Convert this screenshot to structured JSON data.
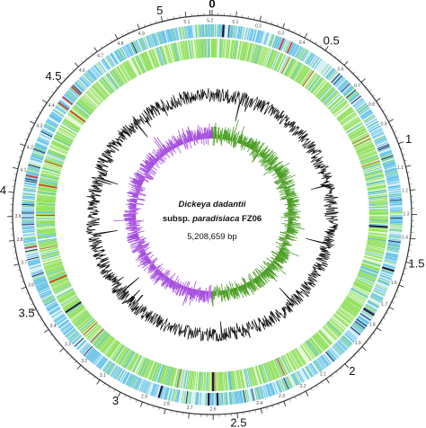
{
  "organism": {
    "genus_species": "Dickeya dadantii",
    "subspecies_prefix": "subsp. ",
    "subspecies": "paradisiaca",
    "strain": " FZ06",
    "genome_size": "5,208,659 bp"
  },
  "scale": {
    "total_mb": 5.208659,
    "major_labels": [
      "0",
      "0.5",
      "1",
      "1.5",
      "2",
      "2.5",
      "3",
      "3.5",
      "4",
      "4.5",
      "5"
    ],
    "minor_labels": [
      "0.1",
      "0.2",
      "0.3",
      "0.4",
      "0.6",
      "0.7",
      "0.8",
      "0.9",
      "1.1",
      "1.2",
      "1.3",
      "1.4",
      "1.6",
      "1.7",
      "1.8",
      "1.9",
      "2.1",
      "2.2",
      "2.3",
      "2.4",
      "2.6",
      "2.7",
      "2.8",
      "2.9",
      "3.1",
      "3.2",
      "3.3",
      "3.4",
      "3.6",
      "3.7",
      "3.8",
      "3.9",
      "4.1",
      "4.2",
      "4.3",
      "4.4",
      "4.6",
      "4.7",
      "4.8",
      "4.9",
      "5.1",
      "5.2"
    ]
  },
  "tracks": [
    {
      "name": "forward-strand-cds",
      "color": "#5bbfe6"
    },
    {
      "name": "reverse-strand-cds",
      "color": "#8fe05a"
    },
    {
      "name": "rna-genes",
      "color": "#d9342b"
    },
    {
      "name": "gc-content",
      "color": "#111111"
    },
    {
      "name": "gc-skew-positive",
      "color": "#4a9e23"
    },
    {
      "name": "gc-skew-negative",
      "color": "#a64ee0"
    }
  ],
  "colors": {
    "ring": "#333333",
    "forward": "#5bbfe6",
    "reverse": "#8fe05a",
    "rna": "#d9342b",
    "dark_mark": "#1a1a40",
    "gc": "#111111",
    "skew_pos": "#4a9e23",
    "skew_neg": "#a64ee0"
  }
}
